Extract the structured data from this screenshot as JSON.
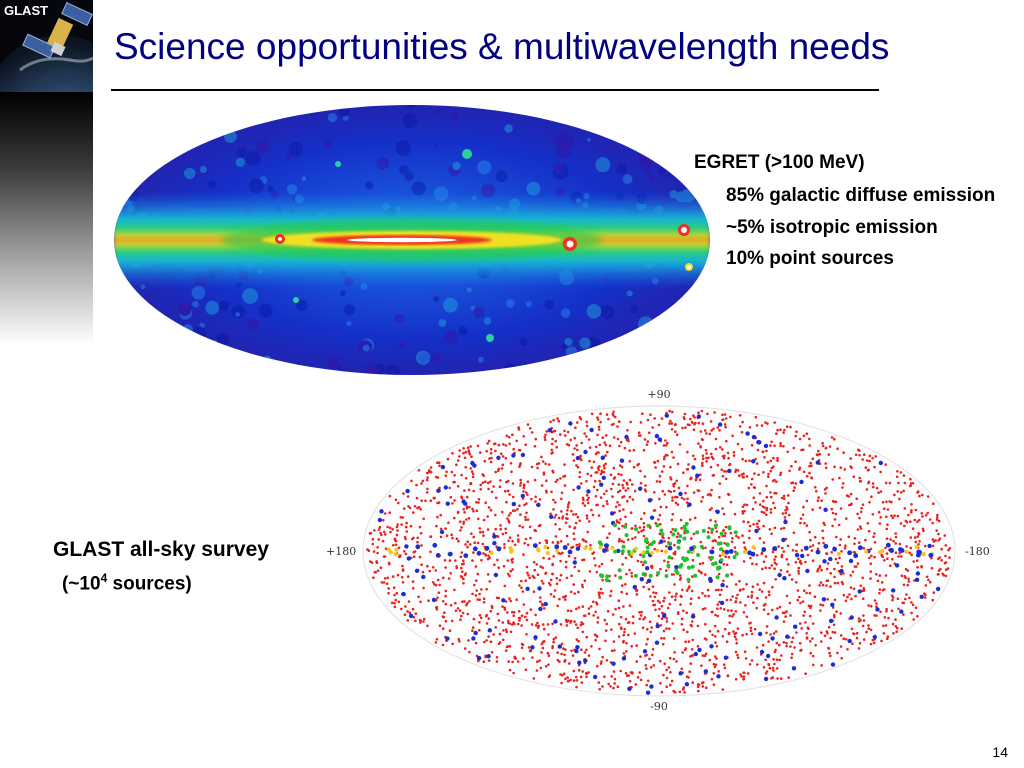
{
  "logo": {
    "text": "GLAST"
  },
  "slide": {
    "title": "Science opportunities & multiwavelength needs",
    "page_number": "14"
  },
  "egret": {
    "heading": "EGRET (>100 MeV)",
    "items": [
      "85% galactic diffuse emission",
      "~5% isotropic emission",
      "10% point sources"
    ]
  },
  "survey": {
    "label": "GLAST all-sky survey",
    "count_prefix": "(~10",
    "count_exponent": "4",
    "count_suffix": " sources)",
    "axis_top": "+90",
    "axis_bottom": "-90",
    "axis_left": "+180",
    "axis_right": "-180"
  },
  "colors": {
    "title": "#000080",
    "egret_background": "#1530c8",
    "source_red": "#e8231f",
    "source_blue": "#1a2fd0",
    "source_green": "#22c22a",
    "source_yellow": "#f5c518"
  }
}
